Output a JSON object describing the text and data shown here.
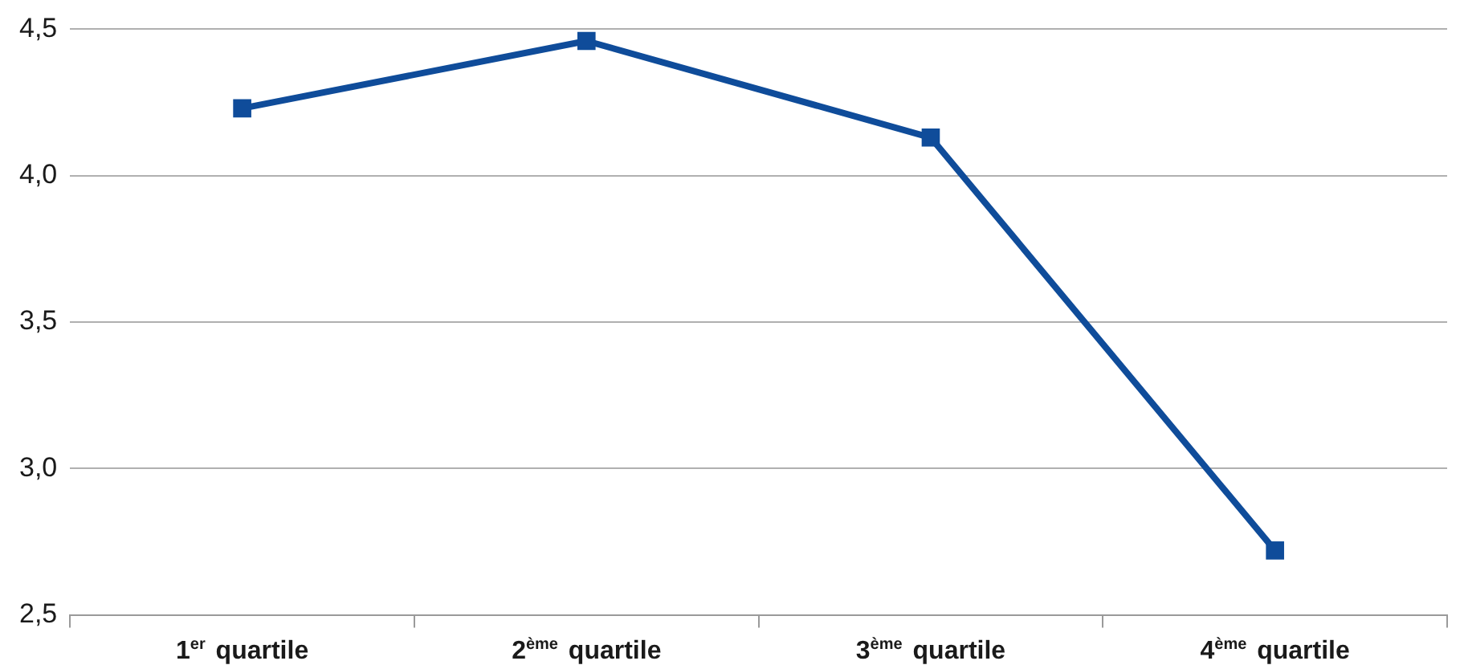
{
  "chart_data": {
    "type": "line",
    "categories": [
      "1$^{er}$ quartile",
      "2$^{ème}$ quartile",
      "3$^{ème}$ quartile",
      "4$^{ème}$ quartile"
    ],
    "series": [
      {
        "color": "#0f4c9a",
        "values": [
          4.23,
          4.46,
          4.13,
          2.72
        ]
      }
    ],
    "ylim": [
      2.5,
      4.5
    ],
    "yticks": [
      {
        "value": 2.5,
        "label": "2,5"
      },
      {
        "value": 3,
        "label": "3,0"
      },
      {
        "value": 3.5,
        "label": "3,5"
      },
      {
        "value": 4,
        "label": "4,0"
      },
      {
        "value": 4.5,
        "label": "4,5"
      }
    ],
    "grid": "y",
    "legend": false,
    "marker": "square",
    "line_style": "solid"
  }
}
